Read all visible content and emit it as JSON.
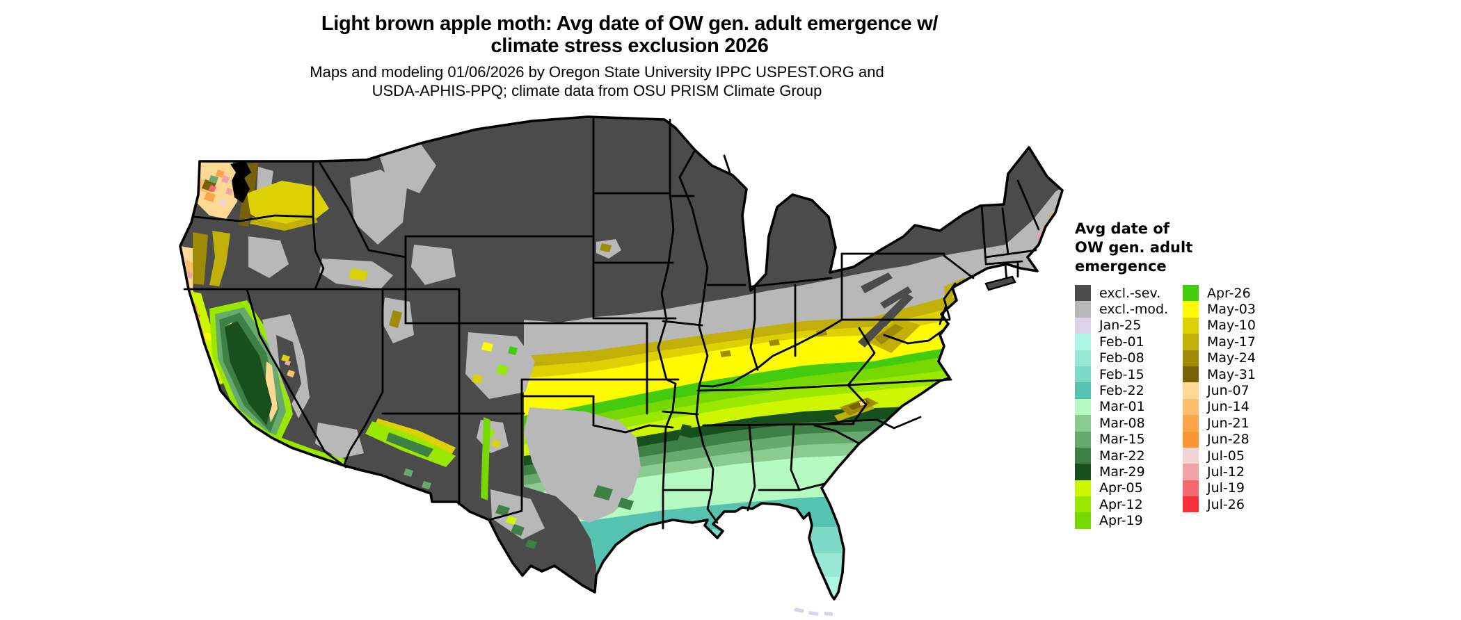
{
  "title": {
    "line1": "Light brown apple moth: Avg date of OW gen. adult emergence w/",
    "line2": "climate stress exclusion 2026"
  },
  "subtitle": {
    "line1": "Maps and modeling 01/06/2026 by Oregon State University IPPC USPEST.ORG and",
    "line2": "USDA-APHIS-PPQ; climate data from OSU PRISM Climate Group"
  },
  "legend": {
    "title": "Avg date of\nOW gen. adult\nemergence",
    "columns": [
      [
        {
          "label": "excl.-sev.",
          "color": "#4b4b4b"
        },
        {
          "label": "excl.-mod.",
          "color": "#b8b8b8"
        },
        {
          "label": "Jan-25",
          "color": "#ded2eb"
        },
        {
          "label": "Feb-01",
          "color": "#abf7e2"
        },
        {
          "label": "Feb-08",
          "color": "#97e9d4"
        },
        {
          "label": "Feb-15",
          "color": "#7fd9c7"
        },
        {
          "label": "Feb-22",
          "color": "#55c3b0"
        },
        {
          "label": "Mar-01",
          "color": "#b5fac0"
        },
        {
          "label": "Mar-08",
          "color": "#8bcb90"
        },
        {
          "label": "Mar-15",
          "color": "#68a96e"
        },
        {
          "label": "Mar-22",
          "color": "#3e8045"
        },
        {
          "label": "Mar-29",
          "color": "#17501d"
        },
        {
          "label": "Apr-05",
          "color": "#cdf600"
        },
        {
          "label": "Apr-12",
          "color": "#9ae800"
        },
        {
          "label": "Apr-19",
          "color": "#76d800"
        }
      ],
      [
        {
          "label": "Apr-26",
          "color": "#43cb0e"
        },
        {
          "label": "May-03",
          "color": "#fefb00"
        },
        {
          "label": "May-10",
          "color": "#dcd105"
        },
        {
          "label": "May-17",
          "color": "#c0b009"
        },
        {
          "label": "May-24",
          "color": "#a08b07"
        },
        {
          "label": "May-31",
          "color": "#77610a"
        },
        {
          "label": "Jun-07",
          "color": "#fbd995"
        },
        {
          "label": "Jun-14",
          "color": "#fcbf6e"
        },
        {
          "label": "Jun-21",
          "color": "#fba549"
        },
        {
          "label": "Jun-28",
          "color": "#fa9531"
        },
        {
          "label": "Jul-05",
          "color": "#f2d3d5"
        },
        {
          "label": "Jul-12",
          "color": "#f0a3a7"
        },
        {
          "label": "Jul-19",
          "color": "#f4696e"
        },
        {
          "label": "Jul-26",
          "color": "#f92f39"
        }
      ]
    ]
  },
  "map_colors": {
    "background": "#ffffff",
    "border": "#000000",
    "water_sound": "#000000"
  }
}
